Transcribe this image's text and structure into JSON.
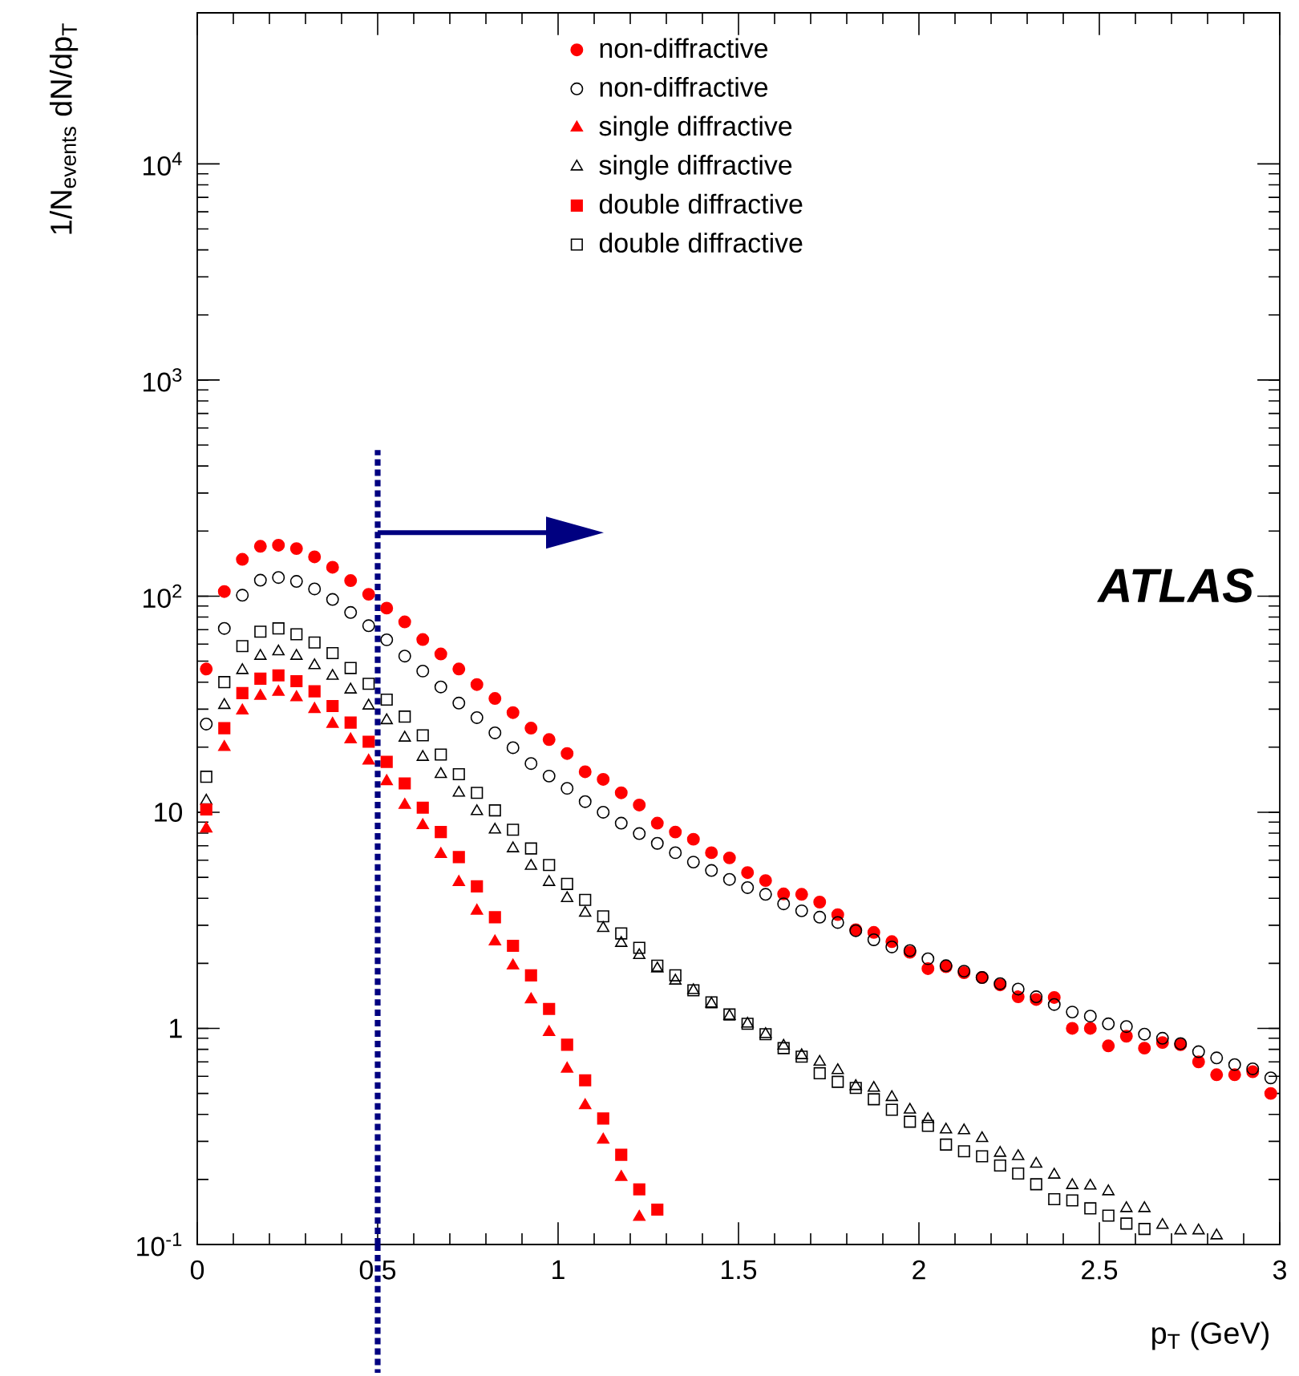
{
  "chart_data": {
    "type": "scatter",
    "xlabel": "p$_{T}$ (GeV)",
    "ylabel": "1/N$_{events}$ dN/dp$_{T}$",
    "log": "y",
    "legend": "top",
    "xlim": [
      0,
      3
    ],
    "ylim": [
      0.1,
      50000
    ],
    "xticks": [
      0,
      0.5,
      1,
      1.5,
      2,
      2.5,
      3
    ],
    "yticks": [
      {
        "value": 0.1,
        "label": "10$^{-1}$"
      },
      1,
      10,
      {
        "value": 100,
        "label": "10$^{2}$"
      },
      {
        "value": 1000,
        "label": "10$^{3}$"
      },
      {
        "value": 10000,
        "label": "10$^{4}$"
      }
    ],
    "x": [
      0.025,
      0.075,
      0.125,
      0.175,
      0.225,
      0.275,
      0.325,
      0.375,
      0.425,
      0.475,
      0.525,
      0.575,
      0.625,
      0.675,
      0.725,
      0.775,
      0.825,
      0.875,
      0.925,
      0.975,
      1.025,
      1.075,
      1.125,
      1.175,
      1.225,
      1.275,
      1.325,
      1.375,
      1.425,
      1.475,
      1.525,
      1.575,
      1.625,
      1.675,
      1.725,
      1.775,
      1.825,
      1.875,
      1.925,
      1.975,
      2.025,
      2.075,
      2.125,
      2.175,
      2.225,
      2.275,
      2.325,
      2.375,
      2.425,
      2.475,
      2.525,
      2.575,
      2.625,
      2.675,
      2.725,
      2.775,
      2.825,
      2.875,
      2.925,
      2.975
    ],
    "series": [
      {
        "name": "non-diffractive",
        "color": "#ff0000",
        "marker": "circle",
        "values": [
          46,
          105,
          148,
          170,
          172,
          166,
          152,
          136,
          118,
          102,
          88,
          76,
          63,
          54,
          46,
          39,
          33.6,
          28.9,
          24.5,
          21.7,
          18.7,
          15.4,
          14.2,
          12.3,
          10.8,
          8.9,
          8.1,
          7.5,
          6.5,
          6.15,
          5.26,
          4.83,
          4.19,
          4.17,
          3.84,
          3.36,
          2.86,
          2.78,
          2.52,
          2.25,
          1.89,
          1.93,
          1.81,
          1.72,
          1.59,
          1.4,
          1.36,
          1.39,
          1.0,
          1.0,
          0.83,
          0.92,
          0.81,
          0.86,
          0.84,
          0.7,
          0.61,
          0.61,
          0.63,
          0.5
        ]
      },
      {
        "name": "non-diffractive",
        "color": "#000000",
        "marker": "circle",
        "values": [
          25.6,
          70.9,
          101,
          118.5,
          122,
          117,
          108,
          96.5,
          84,
          73,
          62.8,
          52.8,
          45,
          38,
          32,
          27.4,
          23.3,
          19.9,
          16.8,
          14.7,
          12.9,
          11.2,
          10.0,
          8.9,
          7.97,
          7.18,
          6.5,
          5.88,
          5.38,
          4.89,
          4.48,
          4.17,
          3.77,
          3.5,
          3.27,
          3.09,
          2.83,
          2.57,
          2.38,
          2.29,
          2.1,
          1.95,
          1.84,
          1.72,
          1.61,
          1.52,
          1.4,
          1.29,
          1.19,
          1.14,
          1.05,
          1.02,
          0.94,
          0.9,
          0.85,
          0.78,
          0.73,
          0.68,
          0.65,
          0.59
        ]
      },
      {
        "name": "single diffractive",
        "color": "#ff0000",
        "marker": "triangle",
        "values": [
          8.4,
          20,
          29.5,
          34.5,
          36,
          34,
          30,
          25.6,
          21.7,
          17.3,
          13.9,
          10.8,
          8.7,
          6.4,
          4.75,
          3.5,
          2.52,
          1.95,
          1.36,
          0.96,
          0.65,
          0.44,
          0.305,
          0.205,
          0.134,
          null,
          null,
          null,
          null,
          null,
          null,
          null,
          null,
          null,
          null,
          null,
          null,
          null,
          null,
          null,
          null,
          null,
          null,
          null,
          null,
          null,
          null,
          null,
          null,
          null,
          null,
          null,
          null,
          null,
          null,
          null,
          null,
          null,
          null,
          null
        ]
      },
      {
        "name": "single diffractive",
        "color": "#000000",
        "marker": "triangle",
        "values": [
          11.3,
          31.3,
          45.4,
          52.8,
          55.4,
          52.8,
          47.8,
          42.7,
          36.9,
          31.1,
          26.6,
          22.1,
          18.0,
          15.0,
          12.3,
          10.1,
          8.3,
          6.8,
          5.64,
          4.75,
          4.0,
          3.42,
          2.91,
          2.48,
          2.18,
          1.89,
          1.66,
          1.5,
          1.3,
          1.14,
          1.05,
          0.94,
          0.83,
          0.75,
          0.7,
          0.64,
          0.54,
          0.53,
          0.48,
          0.42,
          0.38,
          0.34,
          0.337,
          0.31,
          0.265,
          0.256,
          0.236,
          0.21,
          0.188,
          0.187,
          0.176,
          0.147,
          0.147,
          0.123,
          0.116,
          0.116,
          0.11,
          null,
          null,
          null
        ]
      },
      {
        "name": "double diffractive",
        "color": "#ff0000",
        "marker": "square",
        "values": [
          10.3,
          24.5,
          35.6,
          41.5,
          43,
          40.4,
          36.3,
          31,
          26,
          21.2,
          17.1,
          13.6,
          10.5,
          8.1,
          6.2,
          4.54,
          3.27,
          2.41,
          1.76,
          1.23,
          0.84,
          0.575,
          0.383,
          0.26,
          0.18,
          0.145,
          null,
          null,
          null,
          null,
          null,
          null,
          null,
          null,
          null,
          null,
          null,
          null,
          null,
          null,
          null,
          null,
          null,
          null,
          null,
          null,
          null,
          null,
          null,
          null,
          null,
          null,
          null,
          null,
          null,
          null,
          null,
          null,
          null,
          null
        ]
      },
      {
        "name": "double diffractive",
        "color": "#000000",
        "marker": "square",
        "values": [
          14.6,
          40,
          58.7,
          68.5,
          70.9,
          66.6,
          61,
          54.5,
          46.5,
          39.3,
          33.2,
          27.7,
          22.7,
          18.5,
          15.0,
          12.3,
          10.2,
          8.3,
          6.8,
          5.7,
          4.66,
          3.93,
          3.3,
          2.75,
          2.36,
          1.95,
          1.76,
          1.5,
          1.32,
          1.16,
          1.05,
          0.94,
          0.81,
          0.74,
          0.62,
          0.566,
          0.53,
          0.47,
          0.42,
          0.37,
          0.354,
          0.29,
          0.27,
          0.256,
          0.232,
          0.213,
          0.19,
          0.162,
          0.16,
          0.147,
          0.136,
          0.125,
          0.118,
          null,
          null,
          null,
          null,
          null,
          null,
          null
        ]
      }
    ],
    "ref_lines": [
      {
        "axis": "x",
        "value": 0.5,
        "color": "#000080",
        "line_style": "dotted"
      }
    ],
    "annotations": [
      "**ATLAS**"
    ]
  }
}
